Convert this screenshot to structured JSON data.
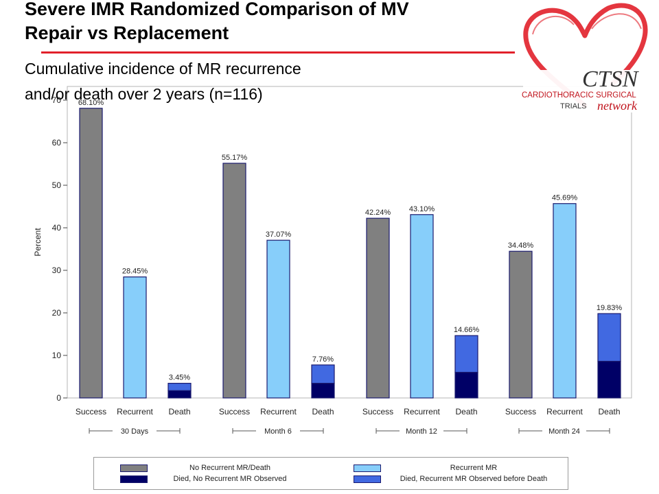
{
  "header": {
    "title_line1": "Severe IMR Randomized Comparison of MV",
    "title_line2": "Repair vs Replacement",
    "subtitle_line1": "Cumulative incidence of MR recurrence",
    "subtitle_line2": "and/or death over 2 years (n=116)"
  },
  "logo": {
    "wordmark": "CTSN",
    "line1": "CARDIOTHORACIC SURGICAL",
    "line2": "TRIALS",
    "script": "network",
    "accent_color": "#e1202a"
  },
  "colors": {
    "no_recurrent": "#808080",
    "recurrent": "#87cefa",
    "died_no_recurrent": "#000066",
    "died_recurrent": "#4169e1",
    "outline": "#1a1a6e"
  },
  "chart_data": {
    "type": "bar",
    "ylabel": "Percent",
    "ylim": [
      0,
      70
    ],
    "yticks": [
      0,
      10,
      20,
      30,
      40,
      50,
      60,
      70
    ],
    "grid": false,
    "legend_position": "bottom",
    "groups": [
      {
        "label": "30 Days",
        "bars": [
          {
            "category": "Success",
            "value": 68.1,
            "label": "68.10%",
            "stack": [
              {
                "series": "No Recurrent MR/Death",
                "value": 68.1
              }
            ]
          },
          {
            "category": "Recurrent",
            "value": 28.45,
            "label": "28.45%",
            "stack": [
              {
                "series": "Recurrent MR",
                "value": 28.45
              }
            ]
          },
          {
            "category": "Death",
            "value": 3.45,
            "label": "3.45%",
            "stack": [
              {
                "series": "Died, No Recurrent MR Observed",
                "value": 1.72
              },
              {
                "series": "Died, Recurrent MR Observed before Death",
                "value": 1.73
              }
            ]
          }
        ]
      },
      {
        "label": "Month 6",
        "bars": [
          {
            "category": "Success",
            "value": 55.17,
            "label": "55.17%",
            "stack": [
              {
                "series": "No Recurrent MR/Death",
                "value": 55.17
              }
            ]
          },
          {
            "category": "Recurrent",
            "value": 37.07,
            "label": "37.07%",
            "stack": [
              {
                "series": "Recurrent MR",
                "value": 37.07
              }
            ]
          },
          {
            "category": "Death",
            "value": 7.76,
            "label": "7.76%",
            "stack": [
              {
                "series": "Died, No Recurrent MR Observed",
                "value": 3.45
              },
              {
                "series": "Died, Recurrent MR Observed before Death",
                "value": 4.31
              }
            ]
          }
        ]
      },
      {
        "label": "Month 12",
        "bars": [
          {
            "category": "Success",
            "value": 42.24,
            "label": "42.24%",
            "stack": [
              {
                "series": "No Recurrent MR/Death",
                "value": 42.24
              }
            ]
          },
          {
            "category": "Recurrent",
            "value": 43.1,
            "label": "43.10%",
            "stack": [
              {
                "series": "Recurrent MR",
                "value": 43.1
              }
            ]
          },
          {
            "category": "Death",
            "value": 14.66,
            "label": "14.66%",
            "stack": [
              {
                "series": "Died, No Recurrent MR Observed",
                "value": 6.03
              },
              {
                "series": "Died, Recurrent MR Observed before Death",
                "value": 8.63
              }
            ]
          }
        ]
      },
      {
        "label": "Month 24",
        "bars": [
          {
            "category": "Success",
            "value": 34.48,
            "label": "34.48%",
            "stack": [
              {
                "series": "No Recurrent MR/Death",
                "value": 34.48
              }
            ]
          },
          {
            "category": "Recurrent",
            "value": 45.69,
            "label": "45.69%",
            "stack": [
              {
                "series": "Recurrent MR",
                "value": 45.69
              }
            ]
          },
          {
            "category": "Death",
            "value": 19.83,
            "label": "19.83%",
            "stack": [
              {
                "series": "Died, No Recurrent MR Observed",
                "value": 8.62
              },
              {
                "series": "Died, Recurrent MR Observed before Death",
                "value": 11.21
              }
            ]
          }
        ]
      }
    ],
    "legend": [
      {
        "label": "No Recurrent MR/Death",
        "color": "#808080"
      },
      {
        "label": "Recurrent MR",
        "color": "#87cefa"
      },
      {
        "label": "Died, No Recurrent MR Observed",
        "color": "#000066"
      },
      {
        "label": "Died, Recurrent MR Observed before Death",
        "color": "#4169e1"
      }
    ]
  }
}
